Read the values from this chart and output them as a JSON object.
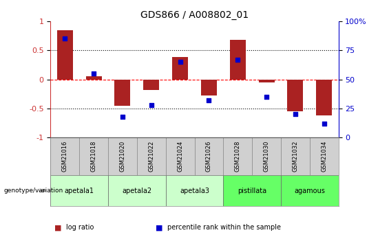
{
  "title": "GDS866 / A008802_01",
  "samples": [
    "GSM21016",
    "GSM21018",
    "GSM21020",
    "GSM21022",
    "GSM21024",
    "GSM21026",
    "GSM21028",
    "GSM21030",
    "GSM21032",
    "GSM21034"
  ],
  "log_ratio": [
    0.85,
    0.05,
    -0.45,
    -0.18,
    0.38,
    -0.28,
    0.68,
    -0.05,
    -0.55,
    -0.62
  ],
  "percentile": [
    85,
    55,
    18,
    28,
    65,
    32,
    67,
    35,
    20,
    12
  ],
  "bar_color": "#aa2222",
  "dot_color": "#0000cc",
  "ylim": [
    -1,
    1
  ],
  "y2lim": [
    0,
    100
  ],
  "yticks": [
    -1,
    -0.5,
    0,
    0.5,
    1
  ],
  "y2ticks": [
    0,
    25,
    50,
    75,
    100
  ],
  "hline_dotted": [
    0.5,
    -0.5
  ],
  "hline_red": 0,
  "sample_bg_color": "#d0d0d0",
  "group_configs": [
    {
      "label": "apetala1",
      "start": 0,
      "end": 2,
      "color": "#ccffcc"
    },
    {
      "label": "apetala2",
      "start": 2,
      "end": 4,
      "color": "#ccffcc"
    },
    {
      "label": "apetala3",
      "start": 4,
      "end": 6,
      "color": "#ccffcc"
    },
    {
      "label": "pistillata",
      "start": 6,
      "end": 8,
      "color": "#66ff66"
    },
    {
      "label": "agamous",
      "start": 8,
      "end": 10,
      "color": "#66ff66"
    }
  ],
  "legend_items": [
    {
      "label": "log ratio",
      "color": "#aa2222"
    },
    {
      "label": "percentile rank within the sample",
      "color": "#0000cc"
    }
  ]
}
